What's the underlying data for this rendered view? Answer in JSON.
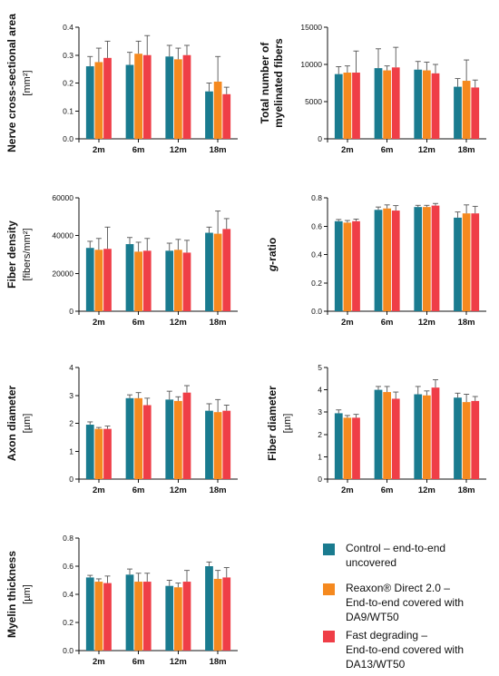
{
  "colors": {
    "control": "#1a7b8f",
    "reaxon": "#f5891f",
    "fast": "#ef3e47"
  },
  "legend": [
    {
      "key": "control",
      "label_lines": [
        "Control – end-to-end",
        "uncovered"
      ]
    },
    {
      "key": "reaxon",
      "label_lines": [
        "Reaxon® Direct 2.0 –",
        "End-to-end covered with",
        "DA9/WT50"
      ]
    },
    {
      "key": "fast",
      "label_lines": [
        "Fast degrading –",
        "End-to-end covered with",
        "DA13/WT50"
      ]
    }
  ],
  "chart_data": [
    {
      "type": "bar",
      "ylabel_lines": [
        "Nerve cross-sectional area"
      ],
      "unit": "[mm²]",
      "categories": [
        "2m",
        "6m",
        "12m",
        "18m"
      ],
      "ylim": [
        0,
        0.4
      ],
      "yticks": [
        "0.0",
        "0.1",
        "0.2",
        "0.3",
        "0.4"
      ],
      "series": [
        {
          "key": "control",
          "values": [
            0.26,
            0.265,
            0.295,
            0.17
          ],
          "errors": [
            0.035,
            0.045,
            0.04,
            0.03
          ]
        },
        {
          "key": "reaxon",
          "values": [
            0.275,
            0.305,
            0.285,
            0.205
          ],
          "errors": [
            0.05,
            0.045,
            0.04,
            0.09
          ]
        },
        {
          "key": "fast",
          "values": [
            0.29,
            0.3,
            0.3,
            0.16
          ],
          "errors": [
            0.06,
            0.07,
            0.035,
            0.025
          ]
        }
      ]
    },
    {
      "type": "bar",
      "ylabel_lines": [
        "Total number of",
        "myelinated fibers"
      ],
      "unit": "",
      "categories": [
        "2m",
        "6m",
        "12m",
        "18m"
      ],
      "ylim": [
        0,
        15000
      ],
      "yticks": [
        "0",
        "5000",
        "10000",
        "15000"
      ],
      "series": [
        {
          "key": "control",
          "values": [
            8700,
            9500,
            9300,
            7000
          ],
          "errors": [
            1000,
            2600,
            1100,
            1100
          ]
        },
        {
          "key": "reaxon",
          "values": [
            8900,
            9200,
            9200,
            7800
          ],
          "errors": [
            900,
            600,
            1100,
            2800
          ]
        },
        {
          "key": "fast",
          "values": [
            8900,
            9600,
            8800,
            6900
          ],
          "errors": [
            2900,
            2700,
            1200,
            1000
          ]
        }
      ]
    },
    {
      "type": "bar",
      "ylabel_lines": [
        "Fiber density"
      ],
      "unit": "[fibers/mm²]",
      "categories": [
        "2m",
        "6m",
        "12m",
        "18m"
      ],
      "ylim": [
        0,
        60000
      ],
      "yticks": [
        "0",
        "20000",
        "40000",
        "60000"
      ],
      "series": [
        {
          "key": "control",
          "values": [
            33500,
            35500,
            32000,
            41500
          ],
          "errors": [
            3500,
            3500,
            4000,
            3000
          ]
        },
        {
          "key": "reaxon",
          "values": [
            32500,
            31500,
            32500,
            41000
          ],
          "errors": [
            6000,
            5000,
            5500,
            12000
          ]
        },
        {
          "key": "fast",
          "values": [
            33000,
            32000,
            31000,
            43500
          ],
          "errors": [
            11500,
            6500,
            6500,
            5500
          ]
        }
      ]
    },
    {
      "type": "bar",
      "ylabel_lines": [
        "g-ratio"
      ],
      "ylabel_italic": true,
      "unit": "",
      "categories": [
        "2m",
        "6m",
        "12m",
        "18m"
      ],
      "ylim": [
        0,
        0.8
      ],
      "yticks": [
        "0.0",
        "0.2",
        "0.4",
        "0.6",
        "0.8"
      ],
      "series": [
        {
          "key": "control",
          "values": [
            0.635,
            0.715,
            0.735,
            0.66
          ],
          "errors": [
            0.012,
            0.02,
            0.012,
            0.04
          ]
        },
        {
          "key": "reaxon",
          "values": [
            0.625,
            0.725,
            0.735,
            0.69
          ],
          "errors": [
            0.015,
            0.025,
            0.012,
            0.06
          ]
        },
        {
          "key": "fast",
          "values": [
            0.635,
            0.71,
            0.745,
            0.69
          ],
          "errors": [
            0.015,
            0.035,
            0.015,
            0.05
          ]
        }
      ]
    },
    {
      "type": "bar",
      "ylabel_lines": [
        "Axon diameter"
      ],
      "unit": "[µm]",
      "categories": [
        "2m",
        "6m",
        "12m",
        "18m"
      ],
      "ylim": [
        0,
        4
      ],
      "yticks": [
        "0",
        "1",
        "2",
        "3",
        "4"
      ],
      "series": [
        {
          "key": "control",
          "values": [
            1.95,
            2.9,
            2.85,
            2.45
          ],
          "errors": [
            0.1,
            0.12,
            0.3,
            0.25
          ]
        },
        {
          "key": "reaxon",
          "values": [
            1.8,
            2.9,
            2.8,
            2.4
          ],
          "errors": [
            0.05,
            0.2,
            0.15,
            0.45
          ]
        },
        {
          "key": "fast",
          "values": [
            1.8,
            2.65,
            3.1,
            2.45
          ],
          "errors": [
            0.1,
            0.25,
            0.25,
            0.2
          ]
        }
      ]
    },
    {
      "type": "bar",
      "ylabel_lines": [
        "Fiber diameter"
      ],
      "unit": "[µm]",
      "categories": [
        "2m",
        "6m",
        "12m",
        "18m"
      ],
      "ylim": [
        0,
        5
      ],
      "yticks": [
        "0",
        "1",
        "2",
        "3",
        "4",
        "5"
      ],
      "series": [
        {
          "key": "control",
          "values": [
            2.95,
            4.0,
            3.8,
            3.65
          ],
          "errors": [
            0.15,
            0.15,
            0.35,
            0.2
          ]
        },
        {
          "key": "reaxon",
          "values": [
            2.75,
            3.9,
            3.75,
            3.45
          ],
          "errors": [
            0.1,
            0.25,
            0.2,
            0.35
          ]
        },
        {
          "key": "fast",
          "values": [
            2.75,
            3.6,
            4.1,
            3.5
          ],
          "errors": [
            0.15,
            0.3,
            0.35,
            0.2
          ]
        }
      ]
    },
    {
      "type": "bar",
      "ylabel_lines": [
        "Myelin thickness"
      ],
      "unit": "[µm]",
      "categories": [
        "2m",
        "6m",
        "12m",
        "18m"
      ],
      "ylim": [
        0,
        0.8
      ],
      "yticks": [
        "0.0",
        "0.2",
        "0.4",
        "0.6",
        "0.8"
      ],
      "series": [
        {
          "key": "control",
          "values": [
            0.52,
            0.54,
            0.46,
            0.6
          ],
          "errors": [
            0.015,
            0.04,
            0.04,
            0.03
          ]
        },
        {
          "key": "reaxon",
          "values": [
            0.49,
            0.49,
            0.45,
            0.51
          ],
          "errors": [
            0.02,
            0.06,
            0.03,
            0.06
          ]
        },
        {
          "key": "fast",
          "values": [
            0.48,
            0.49,
            0.49,
            0.52
          ],
          "errors": [
            0.05,
            0.06,
            0.08,
            0.07
          ]
        }
      ]
    }
  ]
}
